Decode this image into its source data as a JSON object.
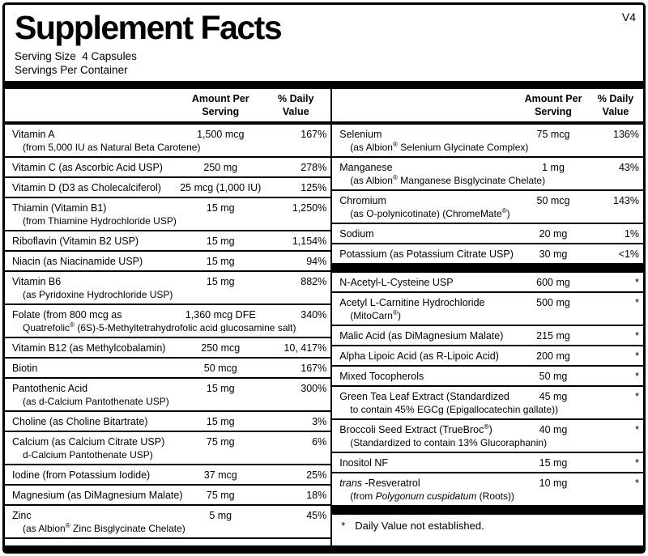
{
  "version_tag": "V4",
  "title": "Supplement Facts",
  "serving_size": "Serving Size  4 Capsules",
  "servings_per_container": "Servings Per Container",
  "headers": {
    "amount_line1": "Amount Per",
    "amount_line2": "Serving",
    "dv_line1": "% Daily",
    "dv_line2": "Value"
  },
  "footnote": {
    "marker": "*",
    "text": "Daily Value not established."
  },
  "left_rows": [
    {
      "name": "Vitamin A",
      "sub": [
        "(from 5,000 IU as Natural Beta Carotene)"
      ],
      "amount": "1,500 mcg",
      "dv": "167%"
    },
    {
      "name": "Vitamin C (as Ascorbic Acid USP)",
      "amount": "250 mg",
      "dv": "278%"
    },
    {
      "name": "Vitamin D (D3 as Cholecalciferol)",
      "amount": "25 mcg (1,000 IU)",
      "dv": "125%"
    },
    {
      "name": "Thiamin (Vitamin B1)",
      "sub": [
        "(from Thiamine Hydrochloride USP)"
      ],
      "amount": "15 mg",
      "dv": "1,250%"
    },
    {
      "name": "Riboflavin (Vitamin B2 USP)",
      "amount": "15 mg",
      "dv": "1,154%"
    },
    {
      "name": "Niacin (as Niacinamide USP)",
      "amount": "15 mg",
      "dv": "94%"
    },
    {
      "name": "Vitamin B6",
      "sub": [
        "(as Pyridoxine Hydrochloride USP)"
      ],
      "amount": "15 mg",
      "dv": "882%"
    },
    {
      "name": "Folate (from 800 mcg as",
      "sub": [
        "Quatrefolic® (6S)-5-Methyltetrahydrofolic acid glucosamine salt)"
      ],
      "amount": "1,360 mcg DFE",
      "dv": "340%"
    },
    {
      "name": "Vitamin B12 (as Methylcobalamin)",
      "amount": "250 mcg",
      "dv": "10, 417%"
    },
    {
      "name": "Biotin",
      "amount": "50 mcg",
      "dv": "167%"
    },
    {
      "name": "Pantothenic Acid",
      "sub": [
        "(as d-Calcium Pantothenate USP)"
      ],
      "amount": "15 mg",
      "dv": "300%"
    },
    {
      "name": "Choline (as Choline Bitartrate)",
      "amount": "15 mg",
      "dv": "3%"
    },
    {
      "name": "Calcium (as Calcium Citrate USP)",
      "sub": [
        "d-Calcium Pantothenate USP)"
      ],
      "amount": "75 mg",
      "dv": "6%"
    },
    {
      "name": "Iodine (from Potassium Iodide)",
      "amount": "37 mcg",
      "dv": "25%"
    },
    {
      "name": "Magnesium (as DiMagnesium Malate)",
      "amount": "75 mg",
      "dv": "18%"
    },
    {
      "name": "Zinc",
      "sub": [
        "(as Albion® Zinc Bisglycinate Chelate)"
      ],
      "amount": "5 mg",
      "dv": "45%"
    }
  ],
  "right_rows": [
    {
      "name": "Selenium",
      "sub": [
        "(as Albion® Selenium Glycinate Complex)"
      ],
      "amount": "75 mcg",
      "dv": "136%"
    },
    {
      "name": "Manganese",
      "sub": [
        "(as Albion® Manganese Bisglycinate Chelate)"
      ],
      "amount": "1 mg",
      "dv": "43%"
    },
    {
      "name": "Chromium",
      "sub": [
        "(as O-polynicotinate) (ChromeMate®)"
      ],
      "amount": "50 mcg",
      "dv": "143%"
    },
    {
      "name": "Sodium",
      "amount": "20 mg",
      "dv": "1%"
    },
    {
      "name": "Potassium (as Potassium Citrate USP)",
      "amount": "30 mg",
      "dv": "<1%"
    },
    {
      "divider": true
    },
    {
      "name": "N-Acetyl-L-Cysteine USP",
      "amount": "600 mg",
      "dv": "*"
    },
    {
      "name": "Acetyl L-Carnitine Hydrochloride",
      "sub": [
        "(MitoCarn®)"
      ],
      "amount": "500 mg",
      "dv": "*"
    },
    {
      "name": "Malic Acid (as DiMagnesium Malate)",
      "amount": "215 mg",
      "dv": "*"
    },
    {
      "name": "Alpha Lipoic Acid (as R-Lipoic Acid)",
      "amount": "200 mg",
      "dv": "*"
    },
    {
      "name": "Mixed Tocopherols",
      "amount": "50 mg",
      "dv": "*"
    },
    {
      "name": "Green Tea Leaf Extract (Standardized",
      "sub": [
        "to contain 45% EGCg (Epigallocatechin gallate))"
      ],
      "amount": "45 mg",
      "dv": "*"
    },
    {
      "name": "Broccoli Seed Extract (TrueBroc®)",
      "sub": [
        "(Standardized to contain 13% Glucoraphanin)"
      ],
      "amount": "40 mg",
      "dv": "*"
    },
    {
      "name": "Inositol NF",
      "amount": "15 mg",
      "dv": "*"
    },
    {
      "name": [
        {
          "t": "trans",
          "i": true
        },
        {
          "t": " -Resveratrol"
        }
      ],
      "sub": [
        [
          {
            "t": "(from "
          },
          {
            "t": "Polygonum cuspidatum",
            "i": true
          },
          {
            "t": " (Roots))"
          }
        ]
      ],
      "amount": "10 mg",
      "dv": "*"
    },
    {
      "divider": true
    }
  ]
}
